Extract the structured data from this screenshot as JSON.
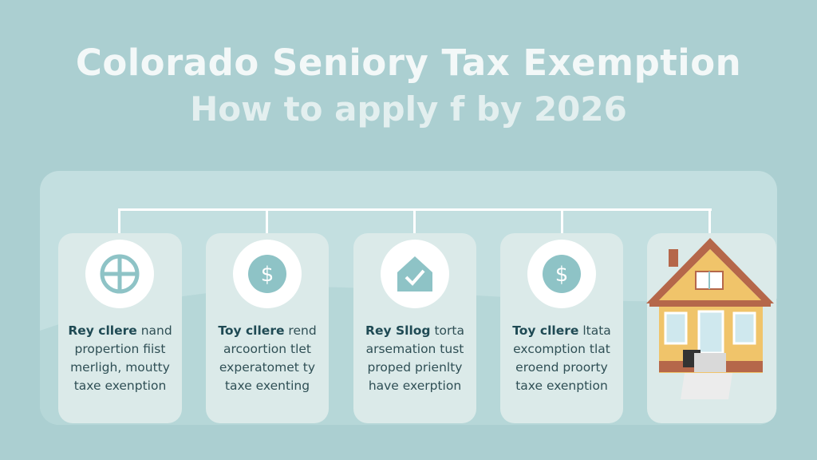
{
  "header": {
    "title": "Colorado Seniory Tax Exemption",
    "subtitle": "How to apply f by 2026"
  },
  "colors": {
    "background": "#abcfd1",
    "panel": "#c3dfe0",
    "card": "#dbeae9",
    "icon": "#8ec3c6"
  },
  "steps": [
    {
      "icon": "window-cross-icon",
      "bold": "Rey cllere",
      "rest": "nand",
      "lines": [
        "propertion fiist",
        "merligh, moutty",
        "taxe exenption"
      ]
    },
    {
      "icon": "dollar-cycle-icon",
      "bold": "Toy cllere",
      "rest": "rend",
      "lines": [
        "arcoortion tlet",
        "experatomet ty",
        "taxe exenting"
      ]
    },
    {
      "icon": "house-check-icon",
      "bold": "Rey Sllog",
      "rest": "torta",
      "lines": [
        "arsemation tust",
        "proped prienlty",
        "have exerption"
      ]
    },
    {
      "icon": "dollar-icon",
      "bold": "Toy cllere",
      "rest": "ltata",
      "lines": [
        "excomption tlat",
        "eroend proorty",
        "taxe exenption"
      ]
    }
  ],
  "illustration": "house-icon"
}
